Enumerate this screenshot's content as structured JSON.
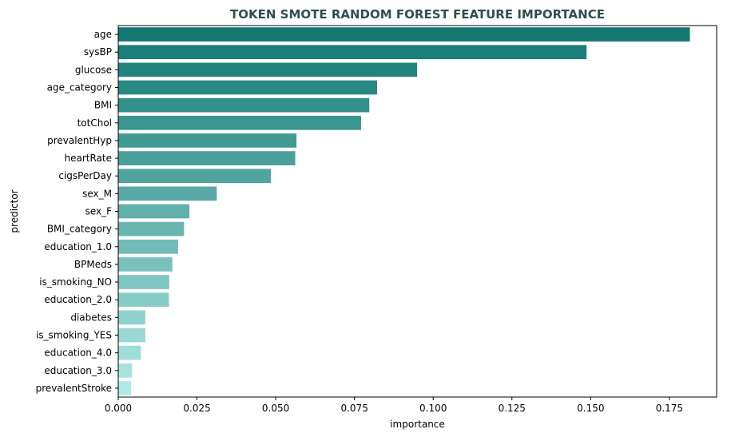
{
  "chart_data": {
    "type": "bar",
    "orientation": "horizontal",
    "title": "TOKEN SMOTE RANDOM FOREST FEATURE IMPORTANCE",
    "xlabel": "importance",
    "ylabel": "predictor",
    "xlim": [
      0,
      0.19
    ],
    "xticks": [
      "0.000",
      "0.025",
      "0.050",
      "0.075",
      "0.100",
      "0.125",
      "0.150",
      "0.175"
    ],
    "categories": [
      "age",
      "sysBP",
      "glucose",
      "age_category",
      "BMI",
      "totChol",
      "prevalentHyp",
      "heartRate",
      "cigsPerDay",
      "sex_M",
      "sex_F",
      "BMI_category",
      "education_1.0",
      "BPMeds",
      "is_smoking_NO",
      "education_2.0",
      "diabetes",
      "is_smoking_YES",
      "education_4.0",
      "education_3.0",
      "prevalentStroke"
    ],
    "values": [
      0.1815,
      0.1487,
      0.0949,
      0.0822,
      0.0797,
      0.0771,
      0.0566,
      0.0562,
      0.0485,
      0.0313,
      0.0226,
      0.0209,
      0.019,
      0.0172,
      0.0162,
      0.0161,
      0.0086,
      0.0086,
      0.0072,
      0.0044,
      0.0041
    ],
    "grid": false,
    "legend": "none",
    "colors": {
      "title": "#2f4f4f",
      "bar_start": "#137872",
      "bar_end": "#afe8e5",
      "axis": "#000000"
    }
  }
}
